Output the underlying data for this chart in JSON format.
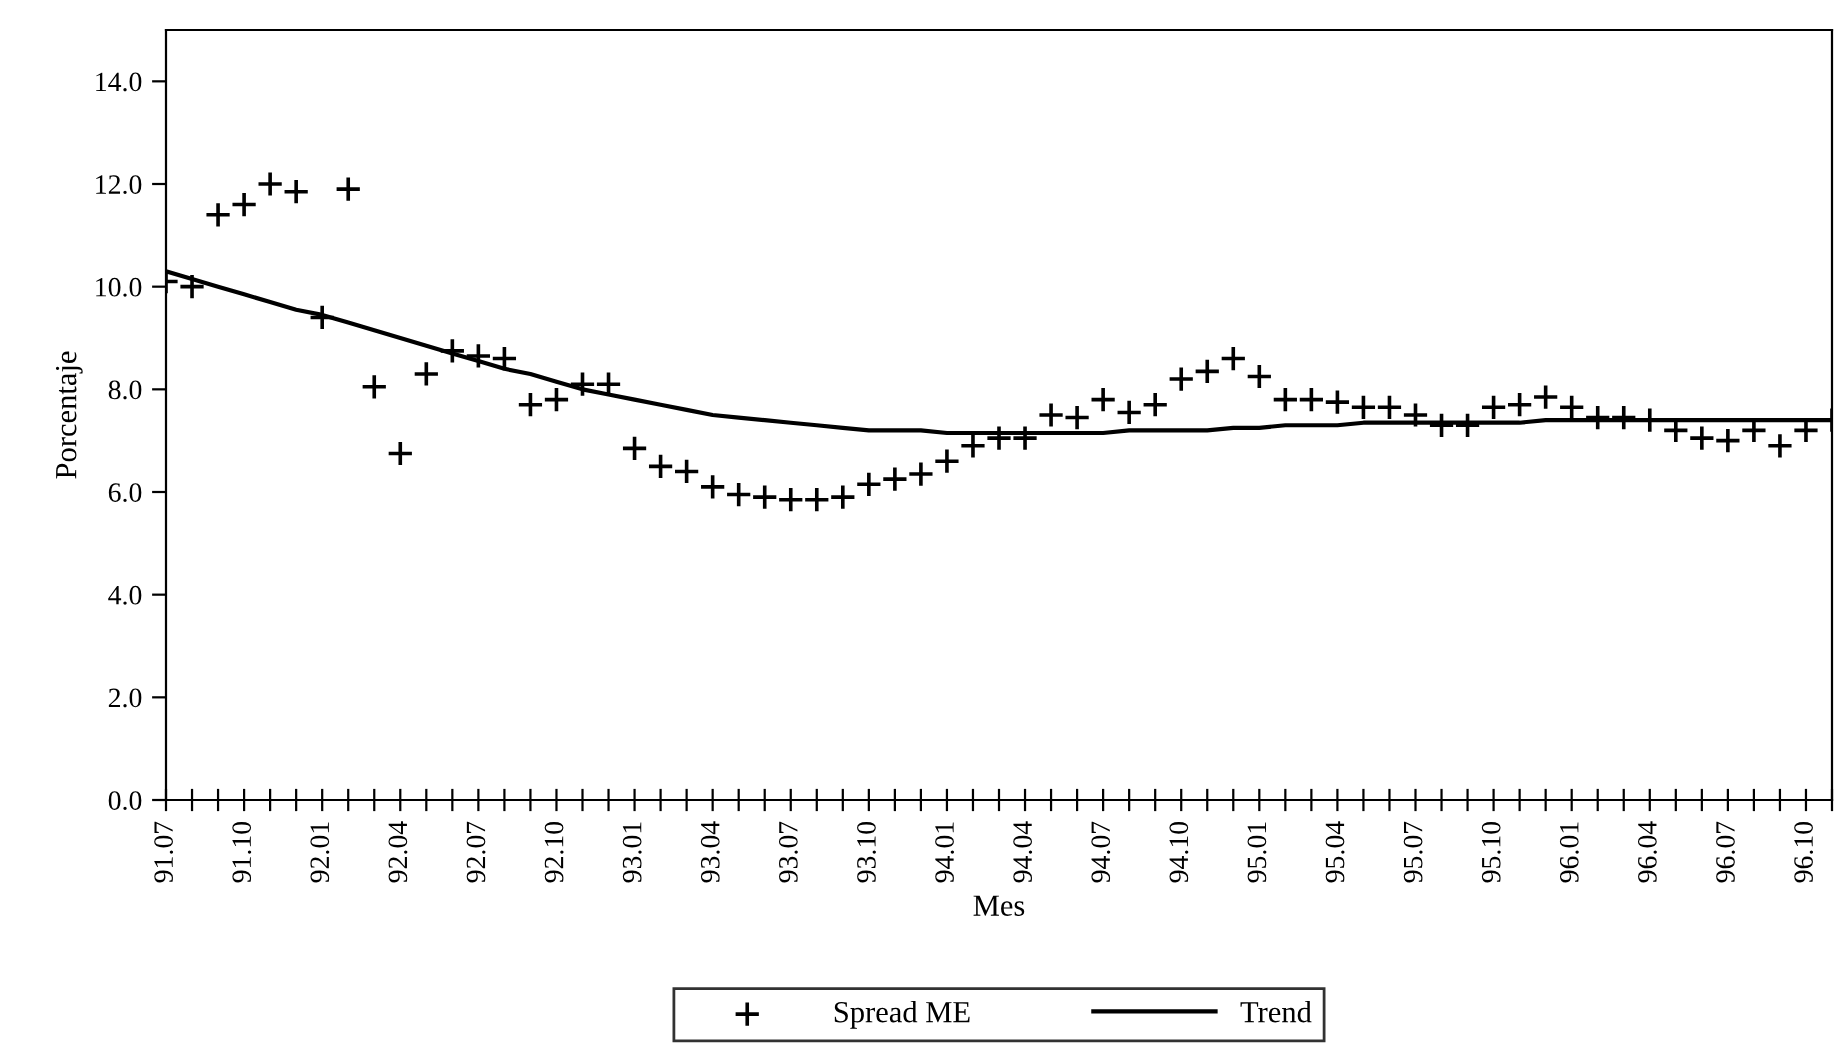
{
  "chart_data": {
    "type": "line",
    "xlabel": "Mes",
    "ylabel": "Porcentaje",
    "categories": [
      "91.07",
      null,
      null,
      "91.10",
      null,
      null,
      "92.01",
      null,
      null,
      "92.04",
      null,
      null,
      "92.07",
      null,
      null,
      "92.10",
      null,
      null,
      "93.01",
      null,
      null,
      "93.04",
      null,
      null,
      "93.07",
      null,
      null,
      "93.10",
      null,
      null,
      "94.01",
      null,
      null,
      "94.04",
      null,
      null,
      "94.07",
      null,
      null,
      "94.10",
      null,
      null,
      "95.01",
      null,
      null,
      "95.04",
      null,
      null,
      "95.07",
      null,
      null,
      "95.10",
      null,
      null,
      "96.01",
      null,
      null,
      "96.04",
      null,
      null,
      "96.07",
      null,
      null,
      "96.10",
      null
    ],
    "series": [
      {
        "name": "Spread ME",
        "type": "scatter",
        "marker": "cross",
        "color": "#000000",
        "values": [
          10.1,
          10.0,
          11.4,
          11.6,
          12.0,
          11.85,
          9.4,
          11.9,
          8.05,
          6.75,
          8.3,
          8.75,
          8.65,
          8.6,
          7.7,
          7.8,
          8.1,
          8.1,
          6.85,
          6.5,
          6.4,
          6.1,
          5.95,
          5.9,
          5.85,
          5.85,
          5.9,
          6.15,
          6.25,
          6.35,
          6.6,
          6.9,
          7.05,
          7.05,
          7.5,
          7.45,
          7.8,
          7.55,
          7.7,
          8.2,
          8.35,
          8.6,
          8.25,
          7.8,
          7.8,
          7.75,
          7.65,
          7.65,
          7.5,
          7.3,
          7.3,
          7.65,
          7.7,
          7.85,
          7.65,
          7.45,
          7.45,
          7.4,
          7.2,
          7.05,
          7.0,
          7.2,
          6.9,
          7.2,
          7.4
        ]
      },
      {
        "name": "Trend",
        "marker": "none",
        "line_style": "solid",
        "color": "#000000",
        "values": [
          10.3,
          10.15,
          10.0,
          9.85,
          9.7,
          9.55,
          9.45,
          9.3,
          9.15,
          9.0,
          8.85,
          8.7,
          8.55,
          8.4,
          8.3,
          8.15,
          8.0,
          7.9,
          7.8,
          7.7,
          7.6,
          7.5,
          7.45,
          7.4,
          7.35,
          7.3,
          7.25,
          7.2,
          7.2,
          7.2,
          7.15,
          7.15,
          7.15,
          7.15,
          7.15,
          7.15,
          7.15,
          7.2,
          7.2,
          7.2,
          7.2,
          7.25,
          7.25,
          7.3,
          7.3,
          7.3,
          7.35,
          7.35,
          7.35,
          7.35,
          7.35,
          7.35,
          7.35,
          7.4,
          7.4,
          7.4,
          7.4,
          7.4,
          7.4,
          7.4,
          7.4,
          7.4,
          7.4,
          7.4,
          7.4
        ]
      }
    ],
    "ylim": [
      0,
      15
    ],
    "yticks": [
      {
        "value": 0,
        "label": "0.0"
      },
      {
        "value": 2,
        "label": "2.0"
      },
      {
        "value": 4,
        "label": "4.0"
      },
      {
        "value": 6,
        "label": "6.0"
      },
      {
        "value": 8,
        "label": "8.0"
      },
      {
        "value": 10,
        "label": "10.0"
      },
      {
        "value": 12,
        "label": "12.0"
      },
      {
        "value": 14,
        "label": "14.0"
      }
    ],
    "grid": false,
    "legend": "bottom"
  }
}
